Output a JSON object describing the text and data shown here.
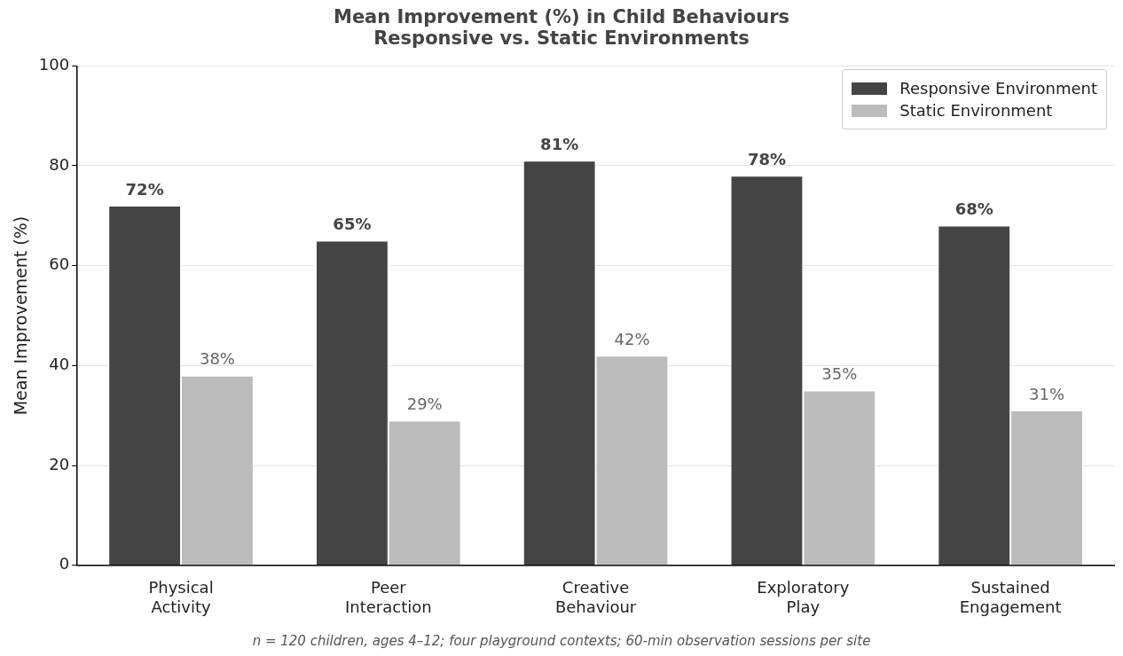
{
  "chart_data": {
    "type": "bar",
    "title": "Mean Improvement (%) in Child Behaviours",
    "subtitle": "Responsive vs. Static Environments",
    "ylabel": "Mean Improvement (%)",
    "categories": [
      "Physical Activity",
      "Peer Interaction",
      "Creative Behaviour",
      "Exploratory Play",
      "Sustained Engagement"
    ],
    "series": [
      {
        "name": "Responsive Environment",
        "color": "#444444",
        "values": [
          72,
          65,
          81,
          78,
          68
        ],
        "value_labels": [
          "72%",
          "65%",
          "81%",
          "78%",
          "68%"
        ]
      },
      {
        "name": "Static Environment",
        "color": "#bbbbbb",
        "values": [
          38,
          29,
          42,
          35,
          31
        ],
        "value_labels": [
          "38%",
          "29%",
          "42%",
          "35%",
          "31%"
        ]
      }
    ],
    "ylim": [
      0,
      100
    ],
    "yticks": [
      0,
      20,
      40,
      60,
      80,
      100
    ],
    "grid": "y",
    "legend": "top right",
    "annotations": [
      "n = 120 children, ages 4–12; four playground contexts; 60-min observation sessions per site"
    ]
  }
}
